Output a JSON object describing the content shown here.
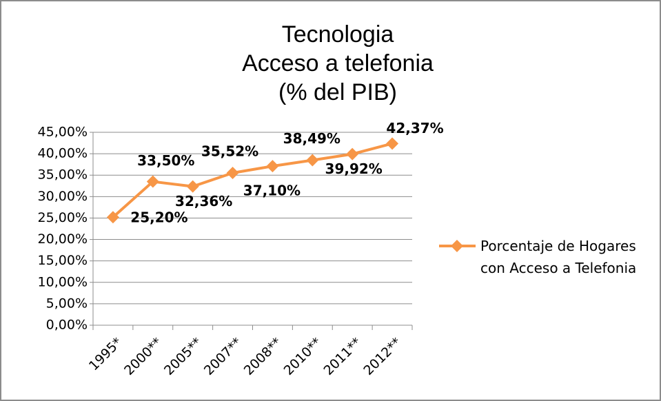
{
  "chart_data": {
    "type": "line",
    "title": [
      "Tecnologia",
      "Acceso a telefonia",
      "(% del PIB)"
    ],
    "categories": [
      "1995*",
      "2000**",
      "2005**",
      "2007**",
      "2008**",
      "2010**",
      "2011**",
      "2012**"
    ],
    "series": [
      {
        "name": "Porcentaje de Hogares con Acceso a Telefonia",
        "color": "#f79646",
        "values": [
          25.2,
          33.5,
          32.36,
          35.52,
          37.1,
          38.49,
          39.92,
          42.37
        ],
        "value_labels": [
          "25,20%",
          "33,50%",
          "32,36%",
          "35,52%",
          "37,10%",
          "38,49%",
          "39,92%",
          "42,37%"
        ]
      }
    ],
    "ylim": [
      0,
      45
    ],
    "yticks": [
      {
        "value": 0,
        "label": "0,00%"
      },
      {
        "value": 5,
        "label": "5,00%"
      },
      {
        "value": 10,
        "label": "10,00%"
      },
      {
        "value": 15,
        "label": "15,00%"
      },
      {
        "value": 20,
        "label": "20,00%"
      },
      {
        "value": 25,
        "label": "25,00%"
      },
      {
        "value": 30,
        "label": "30,00%"
      },
      {
        "value": 35,
        "label": "35,00%"
      },
      {
        "value": 40,
        "label": "40,00%"
      },
      {
        "value": 45,
        "label": "45,00%"
      }
    ],
    "grid": true,
    "legend": "right"
  }
}
